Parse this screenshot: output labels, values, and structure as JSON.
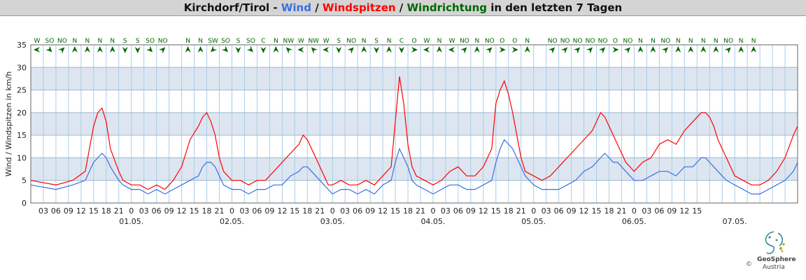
{
  "title": {
    "station": "Kirchdorf/Tirol - ",
    "wind": "Wind",
    "sep1": " / ",
    "gusts": "Windspitzen",
    "sep2": " / ",
    "direction": "Windrichtung",
    "suffix": " in den letzten 7 Tagen"
  },
  "colors": {
    "wind": "#3a6fe0",
    "gusts": "#ff0000",
    "direction": "#006600",
    "grid": "#a9cde8",
    "band": "#dde6f0"
  },
  "chart_data": {
    "type": "line",
    "title": "Kirchdorf/Tirol - Wind / Windspitzen / Windrichtung in den letzten 7 Tagen",
    "ylabel": "Wind / Windspitzen in km/h",
    "ylim": [
      0,
      35
    ],
    "yticks": [
      0,
      5,
      10,
      15,
      20,
      25,
      30,
      35
    ],
    "x_start_hour": 0,
    "x_end_hour": 183,
    "x_hour_ticks": [
      "03",
      "06",
      "09",
      "12",
      "15",
      "18",
      "21",
      "0",
      "03",
      "06",
      "09",
      "12",
      "15",
      "18",
      "21",
      "0",
      "03",
      "06",
      "09",
      "12",
      "15",
      "18",
      "21",
      "0",
      "03",
      "06",
      "09",
      "12",
      "15",
      "18",
      "21",
      "0",
      "03",
      "06",
      "09",
      "12",
      "15",
      "18",
      "21",
      "0",
      "03",
      "06",
      "09",
      "12",
      "15",
      "18",
      "21",
      "0",
      "03",
      "06",
      "09",
      "12",
      "15"
    ],
    "x_date_labels": [
      {
        "label": "01.05.",
        "hour": 24
      },
      {
        "label": "02.05.",
        "hour": 48
      },
      {
        "label": "03.05.",
        "hour": 72
      },
      {
        "label": "04.05.",
        "hour": 96
      },
      {
        "label": "05.05.",
        "hour": 120
      },
      {
        "label": "06.05.",
        "hour": 144
      },
      {
        "label": "07.05.",
        "hour": 168
      }
    ],
    "grid": true,
    "series": [
      {
        "name": "Wind",
        "color": "#3a6fe0",
        "x": [
          0,
          6,
          10,
          13,
          14,
          15,
          16,
          17,
          18,
          19,
          21,
          22,
          24,
          26,
          28,
          30,
          32,
          34,
          36,
          38,
          40,
          41,
          42,
          43,
          44,
          45,
          46,
          48,
          50,
          52,
          54,
          56,
          58,
          60,
          62,
          64,
          65,
          66,
          67,
          68,
          69,
          70,
          71,
          72,
          74,
          76,
          78,
          80,
          82,
          84,
          86,
          87,
          88,
          89,
          90,
          91,
          92,
          94,
          96,
          98,
          100,
          102,
          104,
          106,
          108,
          110,
          111,
          112,
          113,
          114,
          115,
          116,
          117,
          118,
          120,
          122,
          124,
          126,
          128,
          130,
          132,
          134,
          135,
          136,
          137,
          138,
          139,
          140,
          141,
          142,
          144,
          146,
          148,
          150,
          152,
          154,
          156,
          158,
          159,
          160,
          161,
          162,
          163,
          164,
          165,
          166,
          168,
          170,
          172,
          174,
          176,
          178,
          180,
          182,
          183
        ],
        "y": [
          4,
          3,
          4,
          5,
          7,
          9,
          10,
          11,
          10,
          8,
          5,
          4,
          3,
          3,
          2,
          3,
          2,
          3,
          4,
          5,
          6,
          8,
          9,
          9,
          8,
          6,
          4,
          3,
          3,
          2,
          3,
          3,
          4,
          4,
          6,
          7,
          8,
          8,
          7,
          6,
          5,
          4,
          3,
          2,
          3,
          3,
          2,
          3,
          2,
          4,
          5,
          9,
          12,
          10,
          8,
          5,
          4,
          3,
          2,
          3,
          4,
          4,
          3,
          3,
          4,
          5,
          9,
          12,
          14,
          13,
          12,
          10,
          8,
          6,
          4,
          3,
          3,
          3,
          4,
          5,
          7,
          8,
          9,
          10,
          11,
          10,
          9,
          9,
          8,
          7,
          5,
          5,
          6,
          7,
          7,
          6,
          8,
          8,
          9,
          10,
          10,
          9,
          8,
          7,
          6,
          5,
          4,
          3,
          2,
          2,
          3,
          4,
          5,
          7,
          9
        ]
      },
      {
        "name": "Windspitzen",
        "color": "#ff0000",
        "x": [
          0,
          6,
          10,
          13,
          14,
          15,
          16,
          17,
          18,
          19,
          21,
          22,
          24,
          26,
          28,
          30,
          32,
          34,
          36,
          38,
          40,
          41,
          42,
          43,
          44,
          45,
          46,
          48,
          50,
          52,
          54,
          56,
          58,
          60,
          62,
          64,
          65,
          66,
          67,
          68,
          69,
          70,
          71,
          72,
          74,
          76,
          78,
          80,
          82,
          84,
          86,
          87,
          88,
          89,
          90,
          91,
          92,
          94,
          96,
          98,
          100,
          102,
          104,
          106,
          108,
          110,
          111,
          112,
          113,
          114,
          115,
          116,
          117,
          118,
          120,
          122,
          124,
          126,
          128,
          130,
          132,
          134,
          135,
          136,
          137,
          138,
          139,
          140,
          141,
          142,
          144,
          146,
          148,
          150,
          152,
          154,
          156,
          158,
          159,
          160,
          161,
          162,
          163,
          164,
          165,
          166,
          168,
          170,
          172,
          174,
          176,
          178,
          180,
          182,
          183
        ],
        "y": [
          5,
          4,
          5,
          7,
          12,
          17,
          20,
          21,
          18,
          12,
          7,
          5,
          4,
          4,
          3,
          4,
          3,
          5,
          8,
          14,
          17,
          19,
          20,
          18,
          15,
          10,
          7,
          5,
          5,
          4,
          5,
          5,
          7,
          9,
          11,
          13,
          15,
          14,
          12,
          10,
          8,
          6,
          4,
          4,
          5,
          4,
          4,
          5,
          4,
          6,
          8,
          18,
          28,
          22,
          13,
          8,
          6,
          5,
          4,
          5,
          7,
          8,
          6,
          6,
          8,
          12,
          22,
          25,
          27,
          24,
          20,
          15,
          10,
          7,
          6,
          5,
          6,
          8,
          10,
          12,
          14,
          16,
          18,
          20,
          19,
          17,
          15,
          13,
          11,
          9,
          7,
          9,
          10,
          13,
          14,
          13,
          16,
          18,
          19,
          20,
          20,
          19,
          17,
          14,
          12,
          10,
          6,
          5,
          4,
          4,
          5,
          7,
          10,
          15,
          17
        ]
      }
    ],
    "directions": [
      {
        "hour": 1.5,
        "label": "W",
        "angle": 90
      },
      {
        "hour": 4.5,
        "label": "SO",
        "angle": 315
      },
      {
        "hour": 7.5,
        "label": "NO",
        "angle": 225
      },
      {
        "hour": 10.5,
        "label": "N",
        "angle": 180
      },
      {
        "hour": 13.5,
        "label": "N",
        "angle": 180
      },
      {
        "hour": 16.5,
        "label": "N",
        "angle": 180
      },
      {
        "hour": 19.5,
        "label": "N",
        "angle": 180
      },
      {
        "hour": 22.5,
        "label": "S",
        "angle": 0
      },
      {
        "hour": 25.5,
        "label": "S",
        "angle": 0
      },
      {
        "hour": 28.5,
        "label": "SO",
        "angle": 315
      },
      {
        "hour": 31.5,
        "label": "NO",
        "angle": 225
      },
      {
        "hour": 37.5,
        "label": "N",
        "angle": 180
      },
      {
        "hour": 40.5,
        "label": "N",
        "angle": 180
      },
      {
        "hour": 43.5,
        "label": "SW",
        "angle": 45
      },
      {
        "hour": 46.5,
        "label": "SO",
        "angle": 315
      },
      {
        "hour": 49.5,
        "label": "S",
        "angle": 0
      },
      {
        "hour": 52.5,
        "label": "SO",
        "angle": 315
      },
      {
        "hour": 55.5,
        "label": "C",
        "angle": 0
      },
      {
        "hour": 58.5,
        "label": "N",
        "angle": 180
      },
      {
        "hour": 61.5,
        "label": "NW",
        "angle": 135
      },
      {
        "hour": 64.5,
        "label": "W",
        "angle": 90
      },
      {
        "hour": 67.5,
        "label": "NW",
        "angle": 135
      },
      {
        "hour": 70.5,
        "label": "W",
        "angle": 90
      },
      {
        "hour": 73.5,
        "label": "S",
        "angle": 0
      },
      {
        "hour": 76.5,
        "label": "NO",
        "angle": 225
      },
      {
        "hour": 79.5,
        "label": "N",
        "angle": 180
      },
      {
        "hour": 82.5,
        "label": "S",
        "angle": 0
      },
      {
        "hour": 85.5,
        "label": "N",
        "angle": 180
      },
      {
        "hour": 88.5,
        "label": "C",
        "angle": 0
      },
      {
        "hour": 91.5,
        "label": "O",
        "angle": 270
      },
      {
        "hour": 94.5,
        "label": "W",
        "angle": 90
      },
      {
        "hour": 97.5,
        "label": "N",
        "angle": 180
      },
      {
        "hour": 100.5,
        "label": "W",
        "angle": 90
      },
      {
        "hour": 103.5,
        "label": "NO",
        "angle": 225
      },
      {
        "hour": 106.5,
        "label": "N",
        "angle": 180
      },
      {
        "hour": 109.5,
        "label": "NO",
        "angle": 225
      },
      {
        "hour": 112.5,
        "label": "O",
        "angle": 270
      },
      {
        "hour": 115.5,
        "label": "O",
        "angle": 270
      },
      {
        "hour": 118.5,
        "label": "N",
        "angle": 180
      },
      {
        "hour": 124.5,
        "label": "NO",
        "angle": 225
      },
      {
        "hour": 127.5,
        "label": "NO",
        "angle": 225
      },
      {
        "hour": 130.5,
        "label": "NO",
        "angle": 225
      },
      {
        "hour": 133.5,
        "label": "NO",
        "angle": 225
      },
      {
        "hour": 136.5,
        "label": "NO",
        "angle": 225
      },
      {
        "hour": 139.5,
        "label": "O",
        "angle": 270
      },
      {
        "hour": 142.5,
        "label": "NO",
        "angle": 225
      },
      {
        "hour": 145.5,
        "label": "N",
        "angle": 180
      },
      {
        "hour": 148.5,
        "label": "N",
        "angle": 180
      },
      {
        "hour": 151.5,
        "label": "NO",
        "angle": 225
      },
      {
        "hour": 154.5,
        "label": "N",
        "angle": 180
      },
      {
        "hour": 157.5,
        "label": "N",
        "angle": 180
      },
      {
        "hour": 160.5,
        "label": "N",
        "angle": 180
      },
      {
        "hour": 163.5,
        "label": "N",
        "angle": 180
      },
      {
        "hour": 166.5,
        "label": "NO",
        "angle": 225
      },
      {
        "hour": 169.5,
        "label": "N",
        "angle": 180
      },
      {
        "hour": 172.5,
        "label": "N",
        "angle": 180
      }
    ]
  },
  "logo": {
    "name": "GeoSphere",
    "sub": "Austria",
    "copyright": "©"
  }
}
